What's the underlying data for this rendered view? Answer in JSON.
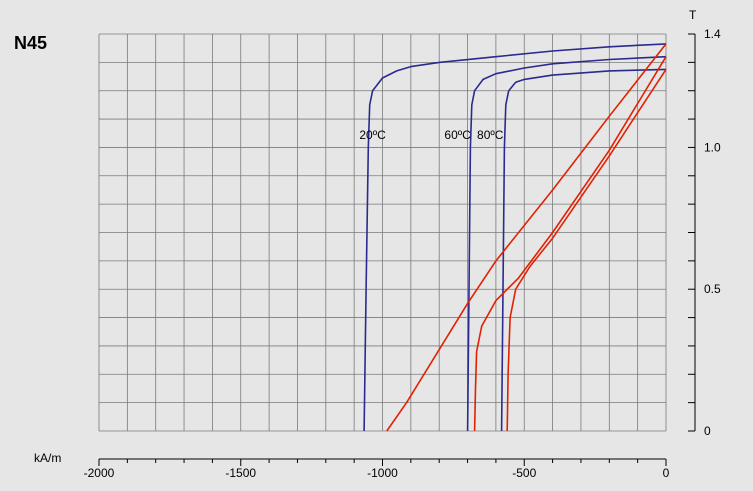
{
  "chart_data": {
    "type": "line",
    "title": "N45",
    "xlabel": "kA/m",
    "ylabel": "T",
    "xlim": [
      -2000,
      0
    ],
    "ylim": [
      0,
      1.4
    ],
    "grid": true,
    "x_ticks": [
      {
        "value": -2000,
        "label": "-2000"
      },
      {
        "value": -1500,
        "label": "-1500"
      },
      {
        "value": -1000,
        "label": "-1000"
      },
      {
        "value": -500,
        "label": "-500"
      },
      {
        "value": 0,
        "label": "0"
      }
    ],
    "y_ticks": [
      {
        "value": 0,
        "label": "0"
      },
      {
        "value": 0.5,
        "label": "0.5"
      },
      {
        "value": 1.0,
        "label": "1.0"
      },
      {
        "value": 1.4,
        "label": "1.4"
      }
    ],
    "colors": {
      "intrinsic": "#2a2a90",
      "normal": "#e32000",
      "grid": "#7a7a7a",
      "background": "#e6e6e6"
    },
    "annotations": [
      {
        "text": "20ºC",
        "x": -1035,
        "y": 1.03
      },
      {
        "text": "60ºC",
        "x": -735,
        "y": 1.03
      },
      {
        "text": "80ºC",
        "x": -620,
        "y": 1.03
      }
    ],
    "series": [
      {
        "kind": "intrinsic",
        "color": "#2a2a90",
        "points": [
          [
            -1065,
            0
          ],
          [
            -1058,
            0.5
          ],
          [
            -1050,
            1.0
          ],
          [
            -1045,
            1.15
          ],
          [
            -1035,
            1.2
          ],
          [
            -1000,
            1.245
          ],
          [
            -950,
            1.27
          ],
          [
            -900,
            1.285
          ],
          [
            -800,
            1.3
          ],
          [
            -600,
            1.32
          ],
          [
            -400,
            1.34
          ],
          [
            -200,
            1.355
          ],
          [
            0,
            1.365
          ]
        ]
      },
      {
        "kind": "intrinsic",
        "color": "#2a2a90",
        "points": [
          [
            -700,
            0
          ],
          [
            -695,
            0.5
          ],
          [
            -690,
            1.0
          ],
          [
            -685,
            1.15
          ],
          [
            -675,
            1.2
          ],
          [
            -645,
            1.24
          ],
          [
            -600,
            1.26
          ],
          [
            -500,
            1.28
          ],
          [
            -400,
            1.295
          ],
          [
            -200,
            1.31
          ],
          [
            0,
            1.32
          ]
        ]
      },
      {
        "kind": "intrinsic",
        "color": "#2a2a90",
        "points": [
          [
            -580,
            0
          ],
          [
            -575,
            0.5
          ],
          [
            -570,
            1.0
          ],
          [
            -565,
            1.15
          ],
          [
            -555,
            1.2
          ],
          [
            -530,
            1.23
          ],
          [
            -500,
            1.24
          ],
          [
            -400,
            1.255
          ],
          [
            -200,
            1.27
          ],
          [
            0,
            1.275
          ]
        ]
      },
      {
        "kind": "normal",
        "color": "#e32000",
        "points": [
          [
            -985,
            0
          ],
          [
            -915,
            0.1
          ],
          [
            -700,
            0.45
          ],
          [
            -600,
            0.6
          ],
          [
            -400,
            0.85
          ],
          [
            -200,
            1.11
          ],
          [
            0,
            1.365
          ]
        ]
      },
      {
        "kind": "normal",
        "color": "#e32000",
        "points": [
          [
            -675,
            0
          ],
          [
            -672,
            0.15
          ],
          [
            -668,
            0.28
          ],
          [
            -650,
            0.37
          ],
          [
            -600,
            0.46
          ],
          [
            -520,
            0.54
          ],
          [
            -400,
            0.7
          ],
          [
            -200,
            0.99
          ],
          [
            0,
            1.32
          ]
        ]
      },
      {
        "kind": "normal",
        "color": "#e32000",
        "points": [
          [
            -560,
            0
          ],
          [
            -557,
            0.2
          ],
          [
            -550,
            0.4
          ],
          [
            -530,
            0.5
          ],
          [
            -480,
            0.58
          ],
          [
            -400,
            0.68
          ],
          [
            -200,
            0.97
          ],
          [
            0,
            1.275
          ]
        ]
      }
    ]
  }
}
